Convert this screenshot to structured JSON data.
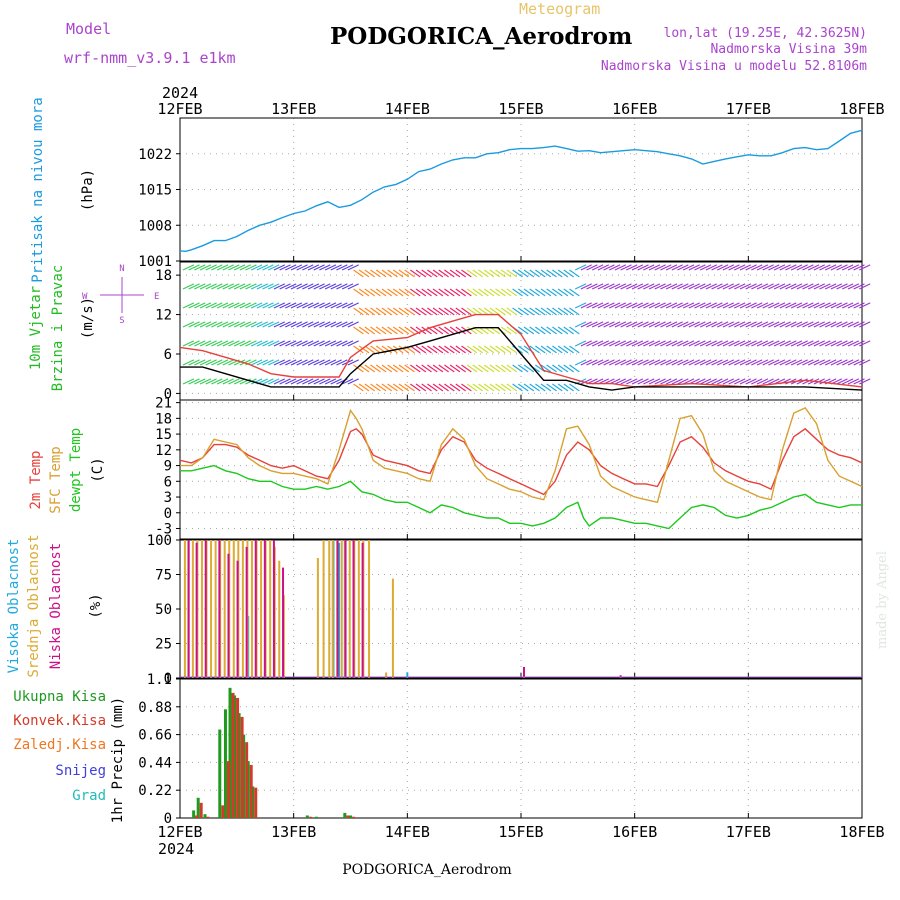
{
  "header": {
    "model_label": "Model",
    "model_name": "wrf-nmm_v3.9.1 e1km",
    "meteogram": "Meteogram",
    "title": "PODGORICA_Aerodrom",
    "lonlat": "lon,lat (19.25E, 42.3625N)",
    "elevation": "Nadmorska Visina 39m",
    "model_elevation": "Nadmorska Visina u modelu 52.8106m",
    "year_top": "2024",
    "year_bottom": "2024",
    "footer_title": "PODGORICA_Aerodrom",
    "watermark": "made by Angel"
  },
  "dates": [
    "12FEB",
    "13FEB",
    "14FEB",
    "15FEB",
    "16FEB",
    "17FEB",
    "18FEB"
  ],
  "colors": {
    "pressure": "#1a9be0",
    "t2m": "#e8403a",
    "sfc": "#d9a030",
    "dew": "#1ec81e",
    "high_cloud": "#22aadd",
    "mid_cloud": "#ddaa33",
    "low_cloud": "#cc1188",
    "total_precip": "#1e9a1e",
    "conv_precip": "#d23a2a",
    "frz_precip": "#ee7722",
    "snow": "#4040dd",
    "hail": "#22bbbb",
    "wind_label": "#22bb22",
    "purple_text": "#aa44cc"
  },
  "chart_data": [
    {
      "type": "line",
      "name": "pressure",
      "ylabel": [
        "Pritisak na nivou mora",
        "(hPa)"
      ],
      "ylim": [
        1001,
        1029
      ],
      "yticks": [
        1001,
        1008,
        1015,
        1022
      ],
      "x_days": [
        0,
        0.05,
        0.1,
        0.2,
        0.3,
        0.4,
        0.5,
        0.6,
        0.7,
        0.8,
        0.9,
        1.0,
        1.1,
        1.2,
        1.3,
        1.4,
        1.5,
        1.6,
        1.7,
        1.8,
        1.9,
        2.0,
        2.1,
        2.2,
        2.3,
        2.4,
        2.5,
        2.6,
        2.7,
        2.8,
        2.9,
        3.0,
        3.1,
        3.2,
        3.3,
        3.4,
        3.5,
        3.6,
        3.7,
        3.8,
        3.9,
        4.0,
        4.1,
        4.2,
        4.3,
        4.4,
        4.5,
        4.6,
        4.7,
        4.8,
        4.9,
        5.0,
        5.1,
        5.2,
        5.3,
        5.4,
        5.5,
        5.6,
        5.7,
        5.8,
        5.9,
        6.0
      ],
      "values": [
        1003.0,
        1002.9,
        1003.2,
        1004.0,
        1005.0,
        1005.0,
        1005.8,
        1007.0,
        1008.0,
        1008.6,
        1009.5,
        1010.3,
        1010.8,
        1011.8,
        1012.6,
        1011.5,
        1011.9,
        1013.0,
        1014.5,
        1015.5,
        1016.0,
        1017.0,
        1018.5,
        1019.0,
        1020.0,
        1020.8,
        1021.2,
        1021.2,
        1022.0,
        1022.2,
        1022.8,
        1023.0,
        1023.0,
        1023.2,
        1023.5,
        1023.0,
        1022.5,
        1022.6,
        1022.2,
        1022.4,
        1022.6,
        1022.8,
        1022.6,
        1022.4,
        1022.0,
        1021.6,
        1021.0,
        1020.0,
        1020.5,
        1021.0,
        1021.4,
        1021.8,
        1021.6,
        1021.6,
        1022.2,
        1023.0,
        1023.2,
        1022.8,
        1023.0,
        1024.5,
        1026.0,
        1026.6
      ]
    },
    {
      "type": "barb",
      "name": "wind",
      "ylabel": [
        "10m Vjetar",
        "Brzina i Pravac",
        "(m/s)"
      ],
      "compass": [
        "N",
        "S",
        "E",
        "W"
      ],
      "ylim": [
        -1,
        20
      ],
      "yticks": [
        0,
        6,
        12,
        18
      ],
      "x_days": [
        0,
        0.2,
        0.4,
        0.6,
        0.8,
        1.0,
        1.2,
        1.4,
        1.5,
        1.7,
        2.0,
        2.2,
        2.4,
        2.6,
        2.8,
        3.0,
        3.2,
        3.4,
        3.6,
        3.8,
        4.0,
        4.5,
        5.0,
        5.5,
        6.0
      ],
      "gust_values": [
        7,
        6.5,
        5.5,
        4.5,
        3,
        2.5,
        2.5,
        2.5,
        5.5,
        8,
        8.5,
        10,
        11,
        12,
        12,
        9,
        3.5,
        2.5,
        1.5,
        1.5,
        1,
        1.5,
        1,
        2,
        1
      ],
      "speed_values": [
        4,
        4,
        3,
        2,
        1,
        1,
        1,
        1,
        3,
        6,
        7,
        8,
        9,
        10,
        10,
        6,
        2,
        2,
        1,
        0.5,
        1,
        1,
        1,
        1,
        0.5
      ]
    },
    {
      "type": "line",
      "name": "temperature",
      "ylabel": [
        "2m Temp",
        "SFC Temp",
        "dewpt Temp",
        "(C)"
      ],
      "ylim": [
        -5,
        21.5
      ],
      "yticks": [
        -3,
        0,
        3,
        6,
        9,
        12,
        15,
        18,
        21
      ],
      "series": [
        {
          "name": "2m Temp",
          "x_days": [
            0,
            0.1,
            0.2,
            0.3,
            0.4,
            0.5,
            0.6,
            0.7,
            0.8,
            0.9,
            1.0,
            1.1,
            1.2,
            1.3,
            1.4,
            1.5,
            1.55,
            1.6,
            1.7,
            1.8,
            1.9,
            2.0,
            2.1,
            2.2,
            2.3,
            2.4,
            2.5,
            2.6,
            2.7,
            2.8,
            2.9,
            3.0,
            3.1,
            3.2,
            3.3,
            3.4,
            3.5,
            3.6,
            3.7,
            3.8,
            3.9,
            4.0,
            4.1,
            4.2,
            4.3,
            4.4,
            4.5,
            4.6,
            4.7,
            4.8,
            4.9,
            5.0,
            5.1,
            5.2,
            5.3,
            5.4,
            5.5,
            5.6,
            5.7,
            5.8,
            5.9,
            6.0
          ],
          "values": [
            10,
            9.5,
            10.5,
            13,
            13,
            12.5,
            11,
            10,
            9,
            8.5,
            9,
            8,
            7,
            6.5,
            10,
            15.5,
            16,
            15,
            11,
            10,
            9.5,
            9,
            8,
            7.5,
            12,
            14.5,
            13.5,
            10,
            8.5,
            7.5,
            6.5,
            5.5,
            4.5,
            3.5,
            6,
            11,
            13.5,
            12,
            9,
            7.5,
            6.5,
            5.5,
            5.5,
            5,
            9,
            13.5,
            14.5,
            12.5,
            9.5,
            8,
            7,
            6,
            5.5,
            4.5,
            10,
            14.5,
            16,
            14,
            12,
            11,
            10.5,
            9.5
          ]
        },
        {
          "name": "SFC Temp",
          "x_days": [
            0,
            0.1,
            0.2,
            0.3,
            0.4,
            0.5,
            0.6,
            0.7,
            0.8,
            0.9,
            1.0,
            1.1,
            1.2,
            1.3,
            1.4,
            1.5,
            1.55,
            1.6,
            1.7,
            1.8,
            1.9,
            2.0,
            2.1,
            2.2,
            2.3,
            2.4,
            2.5,
            2.6,
            2.7,
            2.8,
            2.9,
            3.0,
            3.1,
            3.2,
            3.3,
            3.4,
            3.5,
            3.6,
            3.7,
            3.8,
            3.9,
            4.0,
            4.1,
            4.2,
            4.3,
            4.4,
            4.5,
            4.6,
            4.7,
            4.8,
            4.9,
            5.0,
            5.1,
            5.2,
            5.3,
            5.4,
            5.5,
            5.6,
            5.7,
            5.8,
            5.9,
            6.0
          ],
          "values": [
            9,
            9,
            10.5,
            14,
            13.5,
            13,
            10.5,
            9,
            8,
            7.5,
            7.5,
            7,
            6.5,
            5.5,
            12,
            19.5,
            18,
            16,
            10,
            8.5,
            8,
            7.5,
            6.5,
            6,
            13,
            16,
            14,
            9,
            6.5,
            5.5,
            4.5,
            4,
            3,
            2.5,
            8,
            16,
            16.5,
            13,
            7,
            5,
            4,
            3,
            2.5,
            2,
            10,
            18,
            18.5,
            15,
            8,
            6,
            5,
            4,
            3,
            2.5,
            12,
            19,
            20,
            17,
            10,
            7,
            6,
            5
          ]
        },
        {
          "name": "dewpt Temp",
          "x_days": [
            0,
            0.1,
            0.2,
            0.3,
            0.4,
            0.5,
            0.6,
            0.7,
            0.8,
            0.9,
            1.0,
            1.1,
            1.2,
            1.3,
            1.4,
            1.5,
            1.6,
            1.7,
            1.8,
            1.9,
            2.0,
            2.1,
            2.2,
            2.3,
            2.4,
            2.5,
            2.6,
            2.7,
            2.8,
            2.9,
            3.0,
            3.1,
            3.2,
            3.3,
            3.4,
            3.5,
            3.55,
            3.6,
            3.7,
            3.8,
            3.9,
            4.0,
            4.1,
            4.2,
            4.3,
            4.4,
            4.5,
            4.6,
            4.7,
            4.8,
            4.9,
            5.0,
            5.1,
            5.2,
            5.3,
            5.4,
            5.5,
            5.6,
            5.7,
            5.8,
            5.9,
            6.0
          ],
          "values": [
            8,
            8,
            8.5,
            9,
            8,
            7.5,
            6.5,
            6,
            6,
            5,
            4.5,
            4.5,
            5,
            4.5,
            5,
            6,
            4,
            3.5,
            2.5,
            2,
            2,
            1,
            0,
            1.5,
            1,
            0,
            -0.5,
            -1,
            -1,
            -2,
            -2,
            -2.5,
            -2,
            -1,
            1,
            2,
            -1,
            -2.5,
            -1,
            -1,
            -1.5,
            -2,
            -2,
            -2.5,
            -3,
            -1,
            1,
            1.5,
            1,
            -0.5,
            -1,
            -0.5,
            0.5,
            1,
            2,
            3,
            3.5,
            2,
            1.5,
            1,
            1.5,
            1.5
          ]
        }
      ]
    },
    {
      "type": "bar",
      "name": "cloud_cover",
      "ylabel": [
        "Visoka Oblacnost",
        "Srednja Oblacnost",
        "Niska Oblacnost",
        "(%)"
      ],
      "ylim": [
        0,
        100
      ],
      "yticks": [
        0,
        25,
        50,
        75,
        100
      ],
      "series": [
        {
          "name": "Visoka Oblacnost",
          "x_days": [
            0.6,
            1.35,
            1.4,
            1.45,
            2.0
          ],
          "values": [
            45,
            100,
            98,
            100,
            4
          ]
        },
        {
          "name": "Srednja Oblacnost",
          "x_days": [
            0.03,
            0.06,
            0.1,
            0.14,
            0.18,
            0.22,
            0.26,
            0.3,
            0.34,
            0.38,
            0.42,
            0.46,
            0.5,
            0.54,
            0.58,
            0.62,
            0.66,
            0.7,
            0.74,
            0.78,
            0.82,
            0.86,
            0.9,
            1.2,
            1.25,
            1.3,
            1.33,
            1.37,
            1.41,
            1.44,
            1.48,
            1.52,
            1.56,
            1.6,
            1.65,
            1.8,
            1.86
          ],
          "values": [
            100,
            100,
            100,
            100,
            100,
            100,
            100,
            100,
            100,
            100,
            100,
            100,
            100,
            100,
            100,
            100,
            100,
            100,
            100,
            100,
            95,
            85,
            60,
            87,
            100,
            100,
            100,
            100,
            100,
            100,
            100,
            100,
            100,
            100,
            100,
            4,
            72
          ]
        },
        {
          "name": "Niska Oblacnost",
          "x_days": [
            0.05,
            0.12,
            0.2,
            0.32,
            0.4,
            0.48,
            0.56,
            0.64,
            0.72,
            0.8,
            0.88,
            1.36,
            1.43,
            1.5,
            1.58,
            3.0,
            3.85
          ],
          "values": [
            100,
            98,
            100,
            100,
            90,
            85,
            95,
            100,
            100,
            100,
            80,
            100,
            100,
            100,
            98,
            8,
            2
          ]
        }
      ]
    },
    {
      "type": "bar",
      "name": "precipitation",
      "ylabel": [
        "Ukupna Kisa",
        "Konvek.Kisa",
        "Zaledj.Kisa",
        "Snijeg",
        "Grad",
        "1hr Precip (mm)"
      ],
      "ylim": [
        0,
        1.1
      ],
      "yticks": [
        0,
        0.22,
        0.44,
        0.66,
        0.88,
        1.1
      ],
      "series": [
        {
          "name": "Ukupna Kisa",
          "x_days": [
            0.12,
            0.16,
            0.22,
            0.35,
            0.4,
            0.44,
            0.48,
            0.52,
            0.56,
            0.6,
            0.64,
            1.12,
            1.2,
            1.45,
            1.5
          ],
          "values": [
            0.06,
            0.16,
            0.03,
            0.7,
            0.86,
            1.03,
            0.97,
            0.83,
            0.66,
            0.45,
            0.25,
            0.02,
            0.01,
            0.04,
            0.02
          ]
        },
        {
          "name": "Konvek.Kisa",
          "x_days": [
            0.12,
            0.16,
            0.22,
            0.35,
            0.4,
            0.44,
            0.48,
            0.52,
            0.56,
            0.6,
            0.64,
            1.12,
            1.2,
            1.45,
            1.5
          ],
          "values": [
            0.02,
            0.12,
            0.01,
            0.1,
            0.45,
            0.99,
            0.95,
            0.8,
            0.6,
            0.42,
            0.24,
            0.01,
            0.0,
            0.02,
            0.01
          ]
        }
      ]
    }
  ]
}
